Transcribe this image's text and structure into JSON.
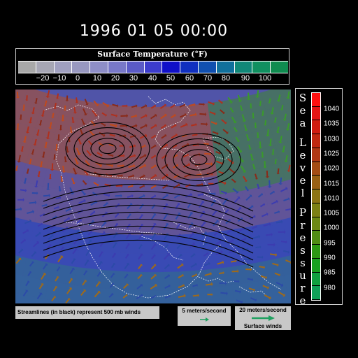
{
  "title": "1996 01 05 00:00",
  "temperature_legend": {
    "title": "Surface Temperature (°F)",
    "tick_labels": [
      "−20",
      "−10",
      "0",
      "10",
      "20",
      "30",
      "40",
      "50",
      "60",
      "70",
      "80",
      "90",
      "100"
    ],
    "colors": [
      "#a8a8a8",
      "#a6a6b4",
      "#a0a0c0",
      "#9898c0",
      "#8e8ec8",
      "#7878c8",
      "#5a5ac6",
      "#3c3ccc",
      "#1010c8",
      "#1030c0",
      "#1050b0",
      "#10709c",
      "#108878",
      "#109060",
      "#108c50"
    ]
  },
  "sea_level_pressure_legend": {
    "title_letters": [
      "S",
      "e",
      "a",
      "L",
      "e",
      "v",
      "e",
      "l",
      "P",
      "r",
      "e",
      "s",
      "s",
      "u",
      "r",
      "e"
    ],
    "values": [
      "1040",
      "1035",
      "1030",
      "1025",
      "1020",
      "1015",
      "1010",
      "1005",
      "1000",
      "995",
      "990",
      "985",
      "980"
    ],
    "colors": [
      "#ff1010",
      "#e41414",
      "#d01c10",
      "#c02810",
      "#b03814",
      "#a44c14",
      "#986014",
      "#8c7414",
      "#7c8014",
      "#6c8814",
      "#508c14",
      "#2c9814",
      "#18a020",
      "#10a040",
      "#10a058"
    ]
  },
  "notes": {
    "streamlines": "Streamlines (in black) represent 500 mb winds",
    "wind_5": "5 meters/second",
    "wind_20": "20 meters/second",
    "surface_winds": "Surface winds"
  },
  "colors": {
    "background": "#000000",
    "map_background": "#5054a8",
    "coastline": "#ffffff",
    "streamline": "#000000",
    "wind_key_arrow": "#1fa060"
  },
  "icons": {
    "wind_key_small": "small-green-arrow-icon",
    "wind_key_large": "large-green-arrow-icon"
  }
}
